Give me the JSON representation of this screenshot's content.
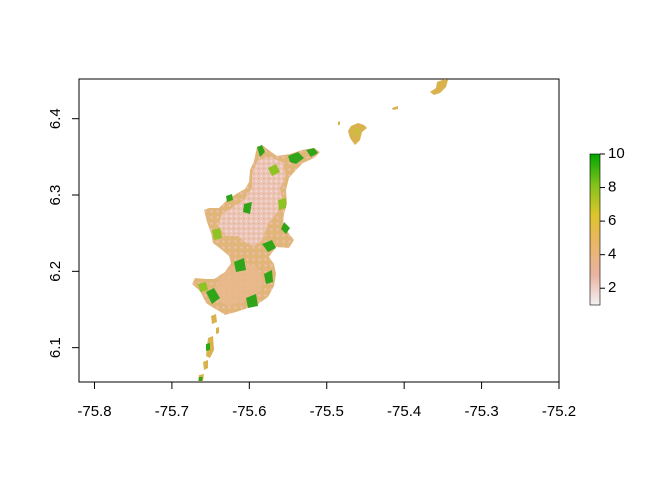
{
  "map": {
    "type": "raster",
    "xlim": [
      -75.82,
      -75.2
    ],
    "ylim": [
      6.055,
      6.452
    ],
    "x_ticks": [
      {
        "value": -75.8,
        "label": "-75.8"
      },
      {
        "value": -75.7,
        "label": "-75.7"
      },
      {
        "value": -75.6,
        "label": "-75.6"
      },
      {
        "value": -75.5,
        "label": "-75.5"
      },
      {
        "value": -75.4,
        "label": "-75.4"
      },
      {
        "value": -75.3,
        "label": "-75.3"
      },
      {
        "value": -75.2,
        "label": "-75.2"
      }
    ],
    "y_ticks": [
      {
        "value": 6.1,
        "label": "6.1"
      },
      {
        "value": 6.2,
        "label": "6.2"
      },
      {
        "value": 6.3,
        "label": "6.3"
      },
      {
        "value": 6.4,
        "label": "6.4"
      }
    ],
    "legend": {
      "position": "right",
      "range": [
        1,
        10
      ],
      "ticks": [
        {
          "value": 2,
          "label": "2"
        },
        {
          "value": 4,
          "label": "4"
        },
        {
          "value": 6,
          "label": "6"
        },
        {
          "value": 8,
          "label": "8"
        },
        {
          "value": 10,
          "label": "10"
        }
      ],
      "colors": [
        "#f2f2f2",
        "#eab3a2",
        "#e8b75c",
        "#ddc62a",
        "#7fc21a",
        "#00a600"
      ]
    }
  }
}
